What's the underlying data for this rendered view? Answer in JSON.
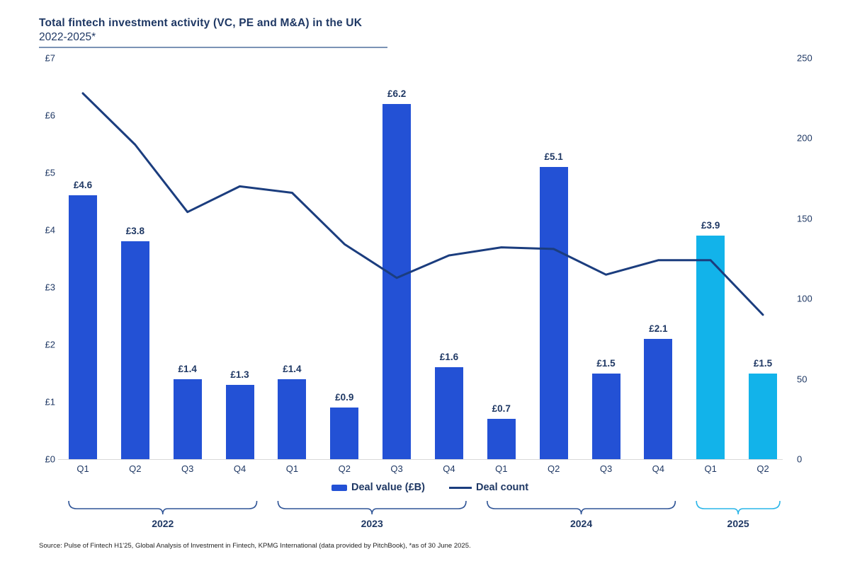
{
  "title": {
    "line1": "Total fintech investment activity (VC, PE and M&A) in the UK",
    "line2": "2022-2025*"
  },
  "chart_data": {
    "type": "bar",
    "title": "Total fintech investment activity (VC, PE and M&A) in the UK 2022-2025*",
    "quarters": [
      "Q1",
      "Q2",
      "Q3",
      "Q4",
      "Q1",
      "Q2",
      "Q3",
      "Q4",
      "Q1",
      "Q2",
      "Q3",
      "Q4",
      "Q1",
      "Q2"
    ],
    "year_groups": [
      {
        "label": "2022",
        "start": 0,
        "end": 3,
        "highlight": false
      },
      {
        "label": "2023",
        "start": 4,
        "end": 7,
        "highlight": false
      },
      {
        "label": "2024",
        "start": 8,
        "end": 11,
        "highlight": false
      },
      {
        "label": "2025",
        "start": 12,
        "end": 13,
        "highlight": true
      }
    ],
    "series": [
      {
        "name": "Deal value (£B)",
        "type": "bar",
        "values": [
          4.6,
          3.8,
          1.4,
          1.3,
          1.4,
          0.9,
          6.2,
          1.6,
          0.7,
          5.1,
          1.5,
          2.1,
          3.9,
          1.5
        ],
        "value_labels": [
          "£4.6",
          "£3.8",
          "£1.4",
          "£1.3",
          "£1.4",
          "£0.9",
          "£6.2",
          "£1.6",
          "£0.7",
          "£5.1",
          "£1.5",
          "£2.1",
          "£3.9",
          "£1.5"
        ]
      },
      {
        "name": "Deal count",
        "type": "line",
        "values": [
          228,
          196,
          154,
          170,
          166,
          134,
          113,
          127,
          132,
          131,
          115,
          124,
          124,
          90
        ]
      }
    ],
    "left_axis": {
      "ticks": [
        "£0",
        "£1",
        "£2",
        "£3",
        "£4",
        "£5",
        "£6",
        "£7"
      ],
      "min": 0,
      "max": 7
    },
    "right_axis": {
      "ticks": [
        "0",
        "50",
        "100",
        "150",
        "200",
        "250"
      ],
      "min": 0,
      "max": 250
    },
    "grid": false,
    "legend_position": "bottom-center"
  },
  "legend": {
    "items": [
      {
        "label": "Deal value (£B)",
        "swatch": "bar"
      },
      {
        "label": "Deal count",
        "swatch": "line"
      }
    ]
  },
  "colors": {
    "bar_primary": "#2351d5",
    "bar_highlight": "#12b3ea",
    "line": "#1b3d7e",
    "text_navy": "#1f3864",
    "bracket": "#2f5496",
    "bracket_highlight": "#29b5e8",
    "baseline": "#d9d9d9",
    "title_underline": "#7b93b5"
  },
  "source": "Source: Pulse of Fintech H1'25, Global Analysis of Investment in Fintech, KPMG International (data provided by PitchBook), *as of 30 June 2025."
}
